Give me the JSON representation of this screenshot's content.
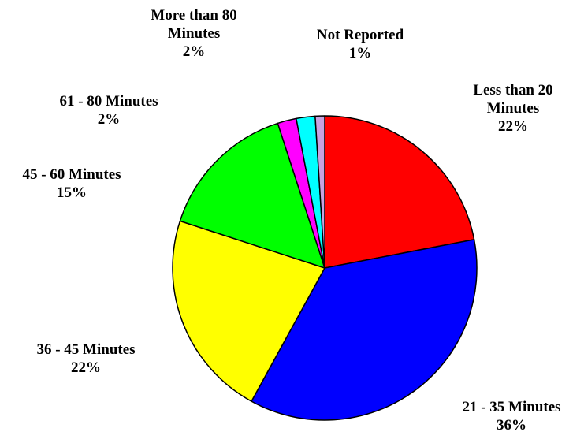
{
  "chart_data": {
    "type": "pie",
    "categories": [
      "Less than 20 Minutes",
      "21 - 35 Minutes",
      "36 - 45 Minutes",
      "45 - 60 Minutes",
      "61 - 80 Minutes",
      "More than 80 Minutes",
      "Not Reported"
    ],
    "values": [
      22,
      36,
      22,
      15,
      2,
      2,
      1
    ],
    "value_labels": [
      "22%",
      "36%",
      "22%",
      "15%",
      "2%",
      "2%",
      "1%"
    ],
    "colors": [
      "#ff0000",
      "#0000ff",
      "#ffff00",
      "#00ff00",
      "#ff00ff",
      "#00ffff",
      "#c8a2e0"
    ]
  }
}
